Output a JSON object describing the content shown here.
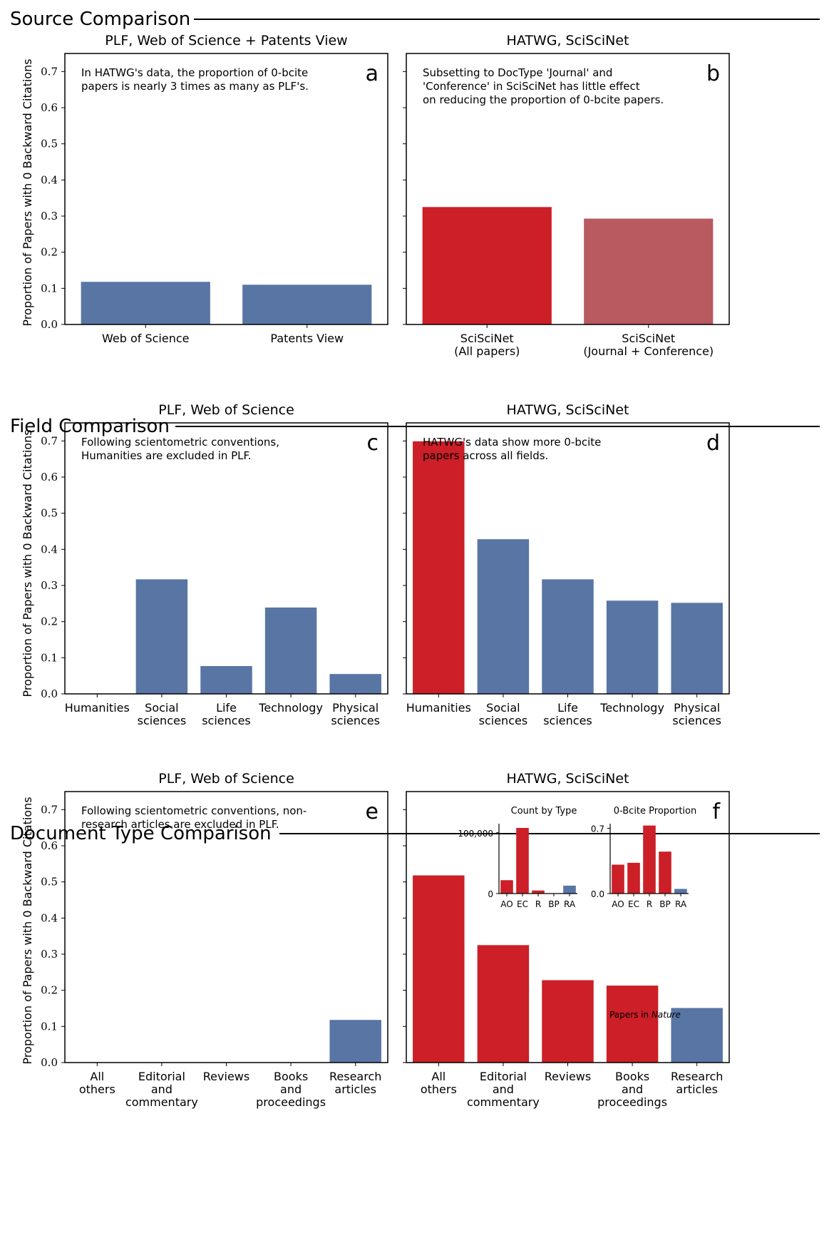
{
  "colors": {
    "blue": "#5875a4",
    "red": "#cc1f27",
    "light_red": "#b85a60",
    "axis": "#000000"
  },
  "sections": [
    {
      "title": "Source Comparison"
    },
    {
      "title": "Field Comparison"
    },
    {
      "title": "Document Type Comparison"
    }
  ],
  "ylabel": "Proportion of Papers with 0 Backward Citations",
  "chart_data": [
    {
      "id": "a",
      "type": "bar",
      "letter": "a",
      "title": "PLF, Web of Science + Patents View",
      "annotation": [
        "In HATWG's data, the proportion of 0-bcite",
        "papers is nearly 3 times as many as PLF's."
      ],
      "categories": [
        [
          "Web of Science"
        ],
        [
          "Patents View"
        ]
      ],
      "values": [
        0.118,
        0.11
      ],
      "bar_colors": [
        "blue",
        "blue"
      ],
      "ylim": [
        0,
        0.75
      ],
      "yticks": [
        "0.0",
        "0.1",
        "0.2",
        "0.3",
        "0.4",
        "0.5",
        "0.6",
        "0.7"
      ],
      "ylabel": "Proportion of Papers with 0 Backward Citations"
    },
    {
      "id": "b",
      "type": "bar",
      "letter": "b",
      "title": "HATWG, SciSciNet",
      "annotation": [
        "Subsetting to DocType 'Journal' and",
        "'Conference' in SciSciNet has little effect",
        "on reducing the proportion of 0-bcite papers."
      ],
      "categories": [
        [
          "SciSciNet",
          "(All papers)"
        ],
        [
          "SciSciNet",
          "(Journal + Conference)"
        ]
      ],
      "values": [
        0.325,
        0.293
      ],
      "bar_colors": [
        "red",
        "light_red"
      ],
      "ylim": [
        0,
        0.75
      ],
      "ylabel": ""
    },
    {
      "id": "c",
      "type": "bar",
      "letter": "c",
      "title": "PLF, Web of Science",
      "annotation": [
        "Following scientometric conventions,",
        "Humanities are excluded in PLF."
      ],
      "categories": [
        [
          "Humanities"
        ],
        [
          "Social",
          "sciences"
        ],
        [
          "Life",
          "sciences"
        ],
        [
          "Technology"
        ],
        [
          "Physical",
          "sciences"
        ]
      ],
      "values": [
        0,
        0.317,
        0.077,
        0.239,
        0.055
      ],
      "bar_colors": [
        "blue",
        "blue",
        "blue",
        "blue",
        "blue"
      ],
      "ylim": [
        0,
        0.75
      ],
      "yticks": [
        "0.0",
        "0.1",
        "0.2",
        "0.3",
        "0.4",
        "0.5",
        "0.6",
        "0.7"
      ],
      "ylabel": "Proportion of Papers with 0 Backward Citations"
    },
    {
      "id": "d",
      "type": "bar",
      "letter": "d",
      "title": "HATWG, SciSciNet",
      "annotation": [
        "HATWG's data show more 0-bcite",
        "papers across all fields."
      ],
      "categories": [
        [
          "Humanities"
        ],
        [
          "Social",
          "sciences"
        ],
        [
          "Life",
          "sciences"
        ],
        [
          "Technology"
        ],
        [
          "Physical",
          "sciences"
        ]
      ],
      "values": [
        0.699,
        0.428,
        0.317,
        0.258,
        0.252
      ],
      "bar_colors": [
        "red",
        "blue",
        "blue",
        "blue",
        "blue"
      ],
      "ylim": [
        0,
        0.75
      ],
      "ylabel": ""
    },
    {
      "id": "e",
      "type": "bar",
      "letter": "e",
      "title": "PLF, Web of Science",
      "annotation": [
        "Following scientometric conventions, non-",
        "research articles are excluded in PLF."
      ],
      "categories": [
        [
          "All",
          "others"
        ],
        [
          "Editorial",
          "and",
          "commentary"
        ],
        [
          "Reviews"
        ],
        [
          "Books",
          "and",
          "proceedings"
        ],
        [
          "Research",
          "articles"
        ]
      ],
      "values": [
        0,
        0,
        0,
        0,
        0.118
      ],
      "bar_colors": [
        "blue",
        "blue",
        "blue",
        "blue",
        "blue"
      ],
      "ylim": [
        0,
        0.75
      ],
      "yticks": [
        "0.0",
        "0.1",
        "0.2",
        "0.3",
        "0.4",
        "0.5",
        "0.6",
        "0.7"
      ],
      "ylabel": "Proportion of Papers with 0 Backward Citations"
    },
    {
      "id": "f",
      "type": "bar",
      "letter": "f",
      "title": "HATWG, SciSciNet",
      "annotation": [],
      "categories": [
        [
          "All",
          "others"
        ],
        [
          "Editorial",
          "and",
          "commentary"
        ],
        [
          "Reviews"
        ],
        [
          "Books",
          "and",
          "proceedings"
        ],
        [
          "Research",
          "articles"
        ]
      ],
      "values": [
        0.518,
        0.325,
        0.228,
        0.213,
        0.151
      ],
      "bar_colors": [
        "red",
        "red",
        "red",
        "red",
        "blue"
      ],
      "ylim": [
        0,
        0.75
      ],
      "ylabel": ""
    },
    {
      "id": "f-inset-count",
      "type": "bar",
      "title": "Count by Type",
      "categories": [
        "AO",
        "EC",
        "R",
        "BP",
        "RA"
      ],
      "values": [
        22000,
        108000,
        5000,
        600,
        13000
      ],
      "bar_colors": [
        "red",
        "red",
        "red",
        "red",
        "blue"
      ],
      "ylim": [
        0,
        115000
      ],
      "yticks": [
        "0",
        "100,000"
      ]
    },
    {
      "id": "f-inset-prop",
      "type": "bar",
      "title": "0-Bcite Proportion",
      "categories": [
        "AO",
        "EC",
        "R",
        "BP",
        "RA"
      ],
      "values": [
        0.31,
        0.33,
        0.73,
        0.45,
        0.05
      ],
      "bar_colors": [
        "red",
        "red",
        "red",
        "red",
        "blue"
      ],
      "ylim": [
        0,
        0.75
      ],
      "yticks": [
        "0.0",
        "0.7"
      ]
    }
  ],
  "inset_xlabel_prefix": "Papers in",
  "inset_xlabel_emph": "Nature"
}
